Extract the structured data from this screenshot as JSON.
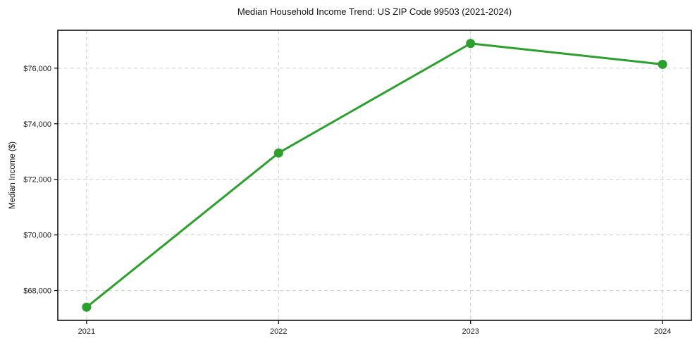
{
  "header": {
    "title": "Median Household Income Trend: US ZIP Code 99503 (2021-2024)"
  },
  "chart_data": {
    "type": "line",
    "title": "Median Household Income Trend: US ZIP Code 99503 (2021-2024)",
    "xlabel": "",
    "ylabel": "Median Income ($)",
    "x": [
      2021,
      2022,
      2023,
      2024
    ],
    "x_tick_labels": [
      "2021",
      "2022",
      "2023",
      "2024"
    ],
    "series": [
      {
        "name": "Median Household Income",
        "values": [
          67400,
          72950,
          76890,
          76140
        ]
      }
    ],
    "yticks": [
      68000,
      70000,
      72000,
      74000,
      76000
    ],
    "ytick_labels": [
      "$68,000",
      "$70,000",
      "$72,000",
      "$74,000",
      "$76,000"
    ],
    "xlim": [
      2020.85,
      2024.15
    ],
    "ylim": [
      66925,
      77365
    ],
    "grid": true,
    "legend": "none",
    "colors": {
      "line": "#2ca02c",
      "marker": "#2ca02c",
      "grid": "#cccccc",
      "spine": "#000000",
      "tick_text": "#1a1a1a",
      "background": "#ffffff"
    }
  }
}
